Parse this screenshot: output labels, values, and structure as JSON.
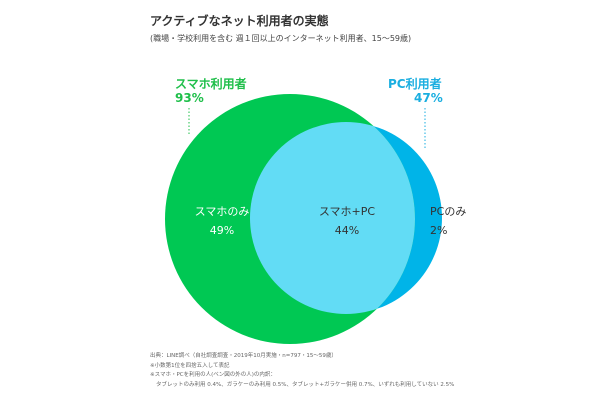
{
  "title": "アクティブなネット利用者の実態",
  "subtitle": "(職場・学校利用を含む 週１回以上のインターネット利用者、15〜59歳)",
  "colors": {
    "smartphone": "#00c853",
    "overlap": "#62dcf5",
    "pc": "#00b4e8",
    "label_green": "#1fbf4a",
    "label_blue": "#1aaee0"
  },
  "sets": {
    "smartphone": {
      "label": "スマホ利用者",
      "value": "93%"
    },
    "pc": {
      "label": "PC利用者",
      "value": "47%"
    }
  },
  "regions": {
    "smartphone_only": {
      "label": "スマホのみ",
      "value": "49%"
    },
    "both": {
      "label": "スマホ+PC",
      "value": "44%"
    },
    "pc_only": {
      "label": "PCのみ",
      "value": "2%"
    }
  },
  "notes": {
    "source": "出典：LINE調べ（自社調査調査・2019年10月実施・n=797・15〜59歳）",
    "rounding": "※小数第1位を四捨五入して表記",
    "other_line1": "※スマホ・PCを利用の人(ベン図の外の人)の内訳：",
    "other_line2": "タブレットのみ利用 0.4%、ガラケーのみ利用 0.5%、タブレット+ガラケー併用 0.7%、いずれも利用していない 2.5%"
  }
}
